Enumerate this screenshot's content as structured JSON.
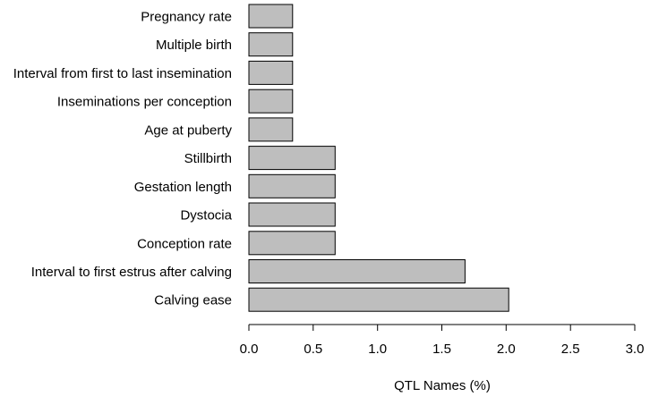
{
  "chart_data": {
    "type": "bar",
    "orientation": "horizontal",
    "categories": [
      "Pregnancy rate",
      "Multiple birth",
      "Interval from first to last insemination",
      "Inseminations per conception",
      "Age at puberty",
      "Stillbirth",
      "Gestation length",
      "Dystocia",
      "Conception rate",
      "Interval to first estrus after calving",
      "Calving ease"
    ],
    "values": [
      0.34,
      0.34,
      0.34,
      0.34,
      0.34,
      0.67,
      0.67,
      0.67,
      0.67,
      1.68,
      2.02
    ],
    "xlabel": "QTL Names (%)",
    "ylabel": "",
    "title": "",
    "xlim": [
      0,
      3
    ],
    "xticks": [
      "0.0",
      "0.5",
      "1.0",
      "1.5",
      "2.0",
      "2.5",
      "3.0"
    ],
    "grid": false,
    "bar_color": "#bebebe",
    "bar_edge_color": "#000000"
  }
}
